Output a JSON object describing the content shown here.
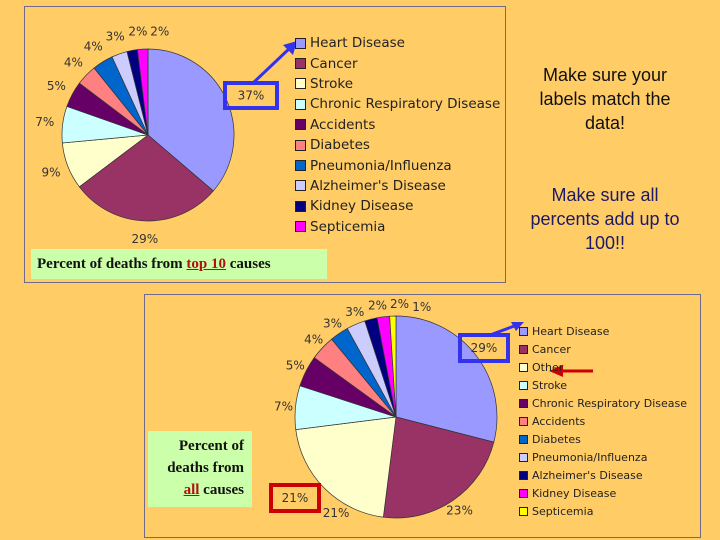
{
  "notes": {
    "labels_match": "Make sure your labels match the data!",
    "add_up": "Make sure all percents add up to 100!!"
  },
  "chart_data": [
    {
      "type": "pie",
      "caption_pre": "Percent of deaths  from ",
      "caption_em": "top 10",
      "caption_post": " causes",
      "categories": [
        "Heart Disease",
        "Cancer",
        "Stroke",
        "Chronic Respiratory Disease",
        "Accidents",
        "Diabetes",
        "Pneumonia/Influenza",
        "Alzheimer's Disease",
        "Kidney Disease",
        "Septicemia"
      ],
      "values": [
        37,
        29,
        9,
        7,
        5,
        4,
        4,
        3,
        2,
        2
      ],
      "labels": [
        "37%",
        "29%",
        "9%",
        "7%",
        "5%",
        "4%",
        "4%",
        "3%",
        "2%",
        "2%"
      ],
      "colors": [
        "#9999ff",
        "#993366",
        "#ffffcc",
        "#ccffff",
        "#660066",
        "#ff8080",
        "#0066cc",
        "#ccccff",
        "#000080",
        "#ff00ff"
      ],
      "highlight": {
        "label": "37%",
        "color": "#3333ee"
      },
      "legend": "right"
    },
    {
      "type": "pie",
      "caption_pre": "Percent of deaths from ",
      "caption_em": "all",
      "caption_post": " causes",
      "categories": [
        "Heart Disease",
        "Cancer",
        "Other",
        "Stroke",
        "Chronic Respiratory Disease",
        "Accidents",
        "Diabetes",
        "Pneumonia/Influenza",
        "Alzheimer's Disease",
        "Kidney Disease",
        "Septicemia"
      ],
      "values": [
        29,
        23,
        21,
        7,
        5,
        4,
        3,
        3,
        2,
        2,
        1
      ],
      "labels": [
        "29%",
        "23%",
        "21%",
        "7%",
        "5%",
        "4%",
        "3%",
        "3%",
        "2%",
        "2%",
        "1%"
      ],
      "colors": [
        "#9999ff",
        "#993366",
        "#ffffcc",
        "#ccffff",
        "#660066",
        "#ff8080",
        "#0066cc",
        "#ccccff",
        "#000080",
        "#ff00ff",
        "#ffff00"
      ],
      "highlight": [
        {
          "label": "29%",
          "color": "#3333ee"
        },
        {
          "label": "21%",
          "color": "#cc0000"
        }
      ],
      "legend": "right"
    }
  ]
}
